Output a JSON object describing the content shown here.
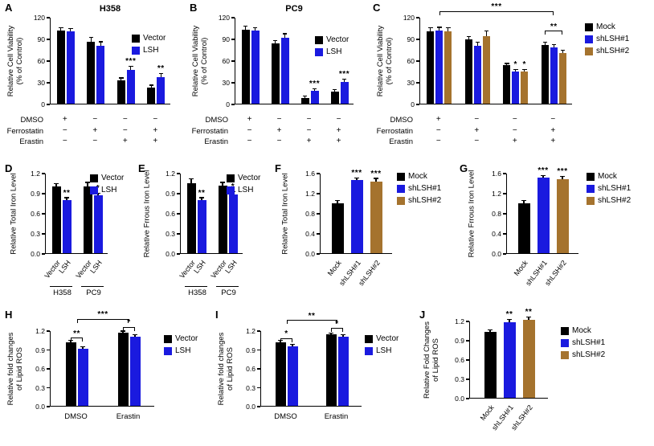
{
  "chart_data": [
    {
      "id": "A",
      "type": "bar",
      "title": "H358",
      "ylabel": [
        "Relative Cell Viability",
        "(% of Control)"
      ],
      "ylim": [
        0,
        120
      ],
      "yticks": [
        "0",
        "30",
        "60",
        "90",
        "120"
      ],
      "categories": [
        "",
        "",
        "",
        ""
      ],
      "legend_position": "top-right",
      "series": [
        {
          "name": "Vector",
          "color": "#000000",
          "values": [
            101,
            86,
            32,
            22
          ],
          "errors": [
            3,
            5,
            3,
            3
          ]
        },
        {
          "name": "LSH",
          "color": "#1a1adf",
          "values": [
            100,
            80,
            47,
            37
          ],
          "errors": [
            3,
            5,
            4,
            4
          ]
        }
      ],
      "stars": [
        {
          "g": 2,
          "s": 1,
          "label": "***"
        },
        {
          "g": 3,
          "s": 1,
          "label": "**"
        }
      ],
      "brackets": [],
      "treatments": {
        "rows": [
          "DMSO",
          "Ferrostatin",
          "Erastin"
        ],
        "matrix": [
          [
            "+",
            "−",
            "−",
            "−"
          ],
          [
            "−",
            "+",
            "−",
            "+"
          ],
          [
            "−",
            "−",
            "+",
            "+"
          ]
        ]
      }
    },
    {
      "id": "B",
      "type": "bar",
      "title": "PC9",
      "ylabel": [
        "Relative Cell Viability",
        "(% of Control)"
      ],
      "ylim": [
        0,
        120
      ],
      "yticks": [
        "0",
        "30",
        "60",
        "90",
        "120"
      ],
      "categories": [
        "",
        "",
        "",
        ""
      ],
      "legend_position": "top-right",
      "series": [
        {
          "name": "Vector",
          "color": "#000000",
          "values": [
            102,
            83,
            8,
            17
          ],
          "errors": [
            5,
            4,
            2,
            2
          ]
        },
        {
          "name": "LSH",
          "color": "#1a1adf",
          "values": [
            101,
            91,
            18,
            30
          ],
          "errors": [
            3,
            5,
            2,
            3
          ]
        }
      ],
      "stars": [
        {
          "g": 2,
          "s": 1,
          "label": "***"
        },
        {
          "g": 3,
          "s": 1,
          "label": "***"
        }
      ],
      "brackets": [],
      "treatments": {
        "rows": [
          "DMSO",
          "Ferrostatin",
          "Erastin"
        ],
        "matrix": [
          [
            "+",
            "−",
            "−",
            "−"
          ],
          [
            "−",
            "+",
            "−",
            "+"
          ],
          [
            "−",
            "−",
            "+",
            "+"
          ]
        ]
      }
    },
    {
      "id": "C",
      "type": "bar",
      "title": "",
      "ylabel": [
        "Relative Cell Viability",
        "(% of Control)"
      ],
      "ylim": [
        0,
        120
      ],
      "yticks": [
        "0",
        "30",
        "60",
        "90",
        "120"
      ],
      "categories": [
        "",
        "",
        "",
        ""
      ],
      "legend_position": "right",
      "series": [
        {
          "name": "Mock",
          "color": "#000000",
          "values": [
            100,
            89,
            53,
            81
          ],
          "errors": [
            4,
            3,
            2,
            3
          ]
        },
        {
          "name": "shLSH#1",
          "color": "#1a1adf",
          "values": [
            101,
            80,
            45,
            78
          ],
          "errors": [
            4,
            4,
            2,
            3
          ]
        },
        {
          "name": "shLSH#2",
          "color": "#a5732e",
          "values": [
            100,
            93,
            45,
            70
          ],
          "errors": [
            4,
            7,
            2,
            3
          ]
        }
      ],
      "stars": [
        {
          "g": 2,
          "s": 1,
          "label": "*"
        },
        {
          "g": 2,
          "s": 2,
          "label": "*"
        }
      ],
      "brackets": [
        {
          "x1": {
            "g": 0,
            "s": "mid"
          },
          "x2": {
            "g": 3,
            "s": "mid"
          },
          "y": 127,
          "label": "***"
        },
        {
          "x1": {
            "g": 3,
            "s": 0
          },
          "x2": {
            "g": 3,
            "s": 2
          },
          "y": 100,
          "label": "**"
        }
      ],
      "treatments": {
        "rows": [
          "DMSO",
          "Ferrostatin",
          "Erastin"
        ],
        "matrix": [
          [
            "+",
            "−",
            "−",
            "−"
          ],
          [
            "−",
            "+",
            "−",
            "+"
          ],
          [
            "−",
            "−",
            "+",
            "+"
          ]
        ]
      }
    },
    {
      "id": "D",
      "type": "bar",
      "title": "",
      "ylabel": [
        "Relative Total Iron Level"
      ],
      "ylim": [
        0,
        1.2
      ],
      "yticks": [
        "0.0",
        "0.3",
        "0.6",
        "0.9",
        "1.2"
      ],
      "categories": [
        "H358",
        "PC9"
      ],
      "legend_position": "top-right",
      "series": [
        {
          "name": "Vector",
          "color": "#000000",
          "values": [
            1.0,
            1.0
          ],
          "errors": [
            0.03,
            0.05
          ]
        },
        {
          "name": "LSH",
          "color": "#1a1adf",
          "values": [
            0.79,
            0.86
          ],
          "errors": [
            0.03,
            0.03
          ]
        }
      ],
      "stars": [
        {
          "g": 0,
          "s": 1,
          "label": "**"
        },
        {
          "g": 1,
          "s": 1,
          "label": "*"
        }
      ],
      "brackets": []
    },
    {
      "id": "E",
      "type": "bar",
      "title": "",
      "ylabel": [
        "Relative Frrous Iron Level"
      ],
      "ylim": [
        0,
        1.2
      ],
      "yticks": [
        "0.0",
        "0.3",
        "0.6",
        "0.9",
        "1.2"
      ],
      "categories": [
        "H358",
        "PC9"
      ],
      "legend_position": "top-right",
      "series": [
        {
          "name": "Vector",
          "color": "#000000",
          "values": [
            1.05,
            1.01
          ],
          "errors": [
            0.05,
            0.04
          ]
        },
        {
          "name": "LSH",
          "color": "#1a1adf",
          "values": [
            0.79,
            0.88
          ],
          "errors": [
            0.03,
            0.03
          ]
        }
      ],
      "stars": [
        {
          "g": 0,
          "s": 1,
          "label": "**"
        },
        {
          "g": 1,
          "s": 1,
          "label": "*"
        }
      ],
      "brackets": []
    },
    {
      "id": "F",
      "type": "bar",
      "title": "",
      "ylabel": [
        "Relative Total Iron Level"
      ],
      "ylim": [
        0,
        1.6
      ],
      "yticks": [
        "0.0",
        "0.4",
        "0.8",
        "1.2",
        "1.6"
      ],
      "categories": [
        ""
      ],
      "legend_position": "right",
      "series": [
        {
          "name": "Mock",
          "color": "#000000",
          "values": [
            1.0
          ],
          "errors": [
            0.04
          ]
        },
        {
          "name": "shLSH#1",
          "color": "#1a1adf",
          "values": [
            1.45
          ],
          "errors": [
            0.04
          ]
        },
        {
          "name": "shLSH#2",
          "color": "#a5732e",
          "values": [
            1.43
          ],
          "errors": [
            0.05
          ]
        }
      ],
      "stars": [
        {
          "g": 0,
          "s": 1,
          "label": "***"
        },
        {
          "g": 0,
          "s": 2,
          "label": "***"
        }
      ],
      "brackets": []
    },
    {
      "id": "G",
      "type": "bar",
      "title": "",
      "ylabel": [
        "Relative Frrous Iron Level"
      ],
      "ylim": [
        0,
        1.6
      ],
      "yticks": [
        "0.0",
        "0.4",
        "0.8",
        "1.2",
        "1.6"
      ],
      "categories": [
        ""
      ],
      "legend_position": "right",
      "series": [
        {
          "name": "Mock",
          "color": "#000000",
          "values": [
            1.0
          ],
          "errors": [
            0.04
          ]
        },
        {
          "name": "shLSH#1",
          "color": "#1a1adf",
          "values": [
            1.5
          ],
          "errors": [
            0.03
          ]
        },
        {
          "name": "shLSH#2",
          "color": "#a5732e",
          "values": [
            1.48
          ],
          "errors": [
            0.04
          ]
        }
      ],
      "stars": [
        {
          "g": 0,
          "s": 1,
          "label": "***"
        },
        {
          "g": 0,
          "s": 2,
          "label": "***"
        }
      ],
      "brackets": []
    },
    {
      "id": "H",
      "type": "bar",
      "title": "",
      "ylabel": [
        "Relative fold changes",
        "of Lipid ROS"
      ],
      "ylim": [
        0,
        1.2
      ],
      "yticks": [
        "0.0",
        "0.3",
        "0.6",
        "0.9",
        "1.2"
      ],
      "categories": [
        "DMSO",
        "Erastin"
      ],
      "legend_position": "right",
      "series": [
        {
          "name": "Vector",
          "color": "#000000",
          "values": [
            1.01,
            1.16
          ],
          "errors": [
            0.02,
            0.02
          ]
        },
        {
          "name": "LSH",
          "color": "#1a1adf",
          "values": [
            0.91,
            1.1
          ],
          "errors": [
            0.02,
            0.02
          ]
        }
      ],
      "stars": [],
      "brackets": [
        {
          "x1": {
            "g": 0,
            "s": 0
          },
          "x2": {
            "g": 0,
            "s": 1
          },
          "y": 1.07,
          "label": "**"
        },
        {
          "x1": {
            "g": 1,
            "s": 0
          },
          "x2": {
            "g": 1,
            "s": 1
          },
          "y": 1.24,
          "label": "*"
        },
        {
          "x1": {
            "g": 0,
            "s": "mid"
          },
          "x2": {
            "g": 1,
            "s": "mid"
          },
          "y": 1.37,
          "label": "***"
        }
      ]
    },
    {
      "id": "I",
      "type": "bar",
      "title": "",
      "ylabel": [
        "Relative fold changes",
        "of Lipid ROS"
      ],
      "ylim": [
        0,
        1.2
      ],
      "yticks": [
        "0.0",
        "0.3",
        "0.6",
        "0.9",
        "1.2"
      ],
      "categories": [
        "DMSO",
        "Erastin"
      ],
      "legend_position": "right",
      "series": [
        {
          "name": "Vector",
          "color": "#000000",
          "values": [
            1.01,
            1.13
          ],
          "errors": [
            0.02,
            0.02
          ]
        },
        {
          "name": "LSH",
          "color": "#1a1adf",
          "values": [
            0.95,
            1.1
          ],
          "errors": [
            0.02,
            0.02
          ]
        }
      ],
      "stars": [],
      "brackets": [
        {
          "x1": {
            "g": 0,
            "s": 0
          },
          "x2": {
            "g": 0,
            "s": 1
          },
          "y": 1.06,
          "label": "*"
        },
        {
          "x1": {
            "g": 1,
            "s": 0
          },
          "x2": {
            "g": 1,
            "s": 1
          },
          "y": 1.22,
          "label": "*"
        },
        {
          "x1": {
            "g": 0,
            "s": "mid"
          },
          "x2": {
            "g": 1,
            "s": "mid"
          },
          "y": 1.35,
          "label": "**"
        }
      ]
    },
    {
      "id": "J",
      "type": "bar",
      "title": "",
      "ylabel": [
        "Relative Fold Changes",
        "of Lipid ROS"
      ],
      "ylim": [
        0,
        1.2
      ],
      "yticks": [
        "0.0",
        "0.3",
        "0.6",
        "0.9",
        "1.2"
      ],
      "categories": [
        ""
      ],
      "legend_position": "right",
      "series": [
        {
          "name": "Mock",
          "color": "#000000",
          "values": [
            1.03
          ],
          "errors": [
            0.02
          ]
        },
        {
          "name": "shLSH#1",
          "color": "#1a1adf",
          "values": [
            1.18
          ],
          "errors": [
            0.03
          ]
        },
        {
          "name": "shLSH#2",
          "color": "#a5732e",
          "values": [
            1.21
          ],
          "errors": [
            0.04
          ]
        }
      ],
      "stars": [
        {
          "g": 0,
          "s": 1,
          "label": "**"
        },
        {
          "g": 0,
          "s": 2,
          "label": "**"
        }
      ],
      "brackets": []
    }
  ],
  "colors": {
    "series_black": "#000000",
    "series_blue": "#1a1adf",
    "series_brown": "#a5732e",
    "axis": "#000000",
    "background": "#ffffff"
  }
}
